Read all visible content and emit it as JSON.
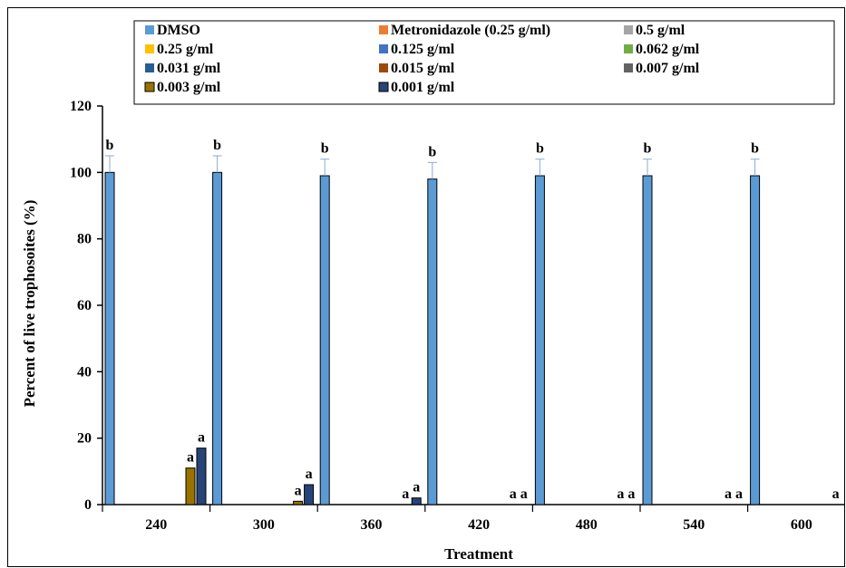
{
  "chart_data": {
    "type": "bar",
    "xlabel": "Treatment",
    "ylabel": "Percent of live trophosoites (%)",
    "ylim": [
      0,
      120
    ],
    "yticks": [
      0,
      20,
      40,
      60,
      80,
      100,
      120
    ],
    "grid": false,
    "legend_position": "top",
    "categories": [
      "240",
      "300",
      "360",
      "420",
      "480",
      "540",
      "600"
    ],
    "series": [
      {
        "name": "DMSO",
        "color": "#5b9bd5",
        "values": [
          100,
          100,
          99,
          98,
          99,
          99,
          99
        ],
        "errors": [
          5,
          5,
          5,
          5,
          5,
          5,
          5
        ],
        "labels": [
          "b",
          "b",
          "b",
          "b",
          "b",
          "b",
          "b"
        ]
      },
      {
        "name": "Metronidazole (0.25 g/ml)",
        "color": "#ed7d31",
        "values": [
          0,
          0,
          0,
          0,
          0,
          0,
          0
        ],
        "errors": [
          0,
          0,
          0,
          0,
          0,
          0,
          0
        ],
        "labels": [
          "",
          "",
          "",
          "",
          "",
          "",
          ""
        ]
      },
      {
        "name": "0.5 g/ml",
        "color": "#a5a5a5",
        "values": [
          0,
          0,
          0,
          0,
          0,
          0,
          0
        ],
        "errors": [
          0,
          0,
          0,
          0,
          0,
          0,
          0
        ],
        "labels": [
          "",
          "",
          "",
          "",
          "",
          "",
          ""
        ]
      },
      {
        "name": "0.25 g/ml",
        "color": "#ffc000",
        "values": [
          0,
          0,
          0,
          0,
          0,
          0,
          0
        ],
        "errors": [
          0,
          0,
          0,
          0,
          0,
          0,
          0
        ],
        "labels": [
          "",
          "",
          "",
          "",
          "",
          "",
          ""
        ]
      },
      {
        "name": "0.125 g/ml",
        "color": "#4472c4",
        "values": [
          0,
          0,
          0,
          0,
          0,
          0,
          0
        ],
        "errors": [
          0,
          0,
          0,
          0,
          0,
          0,
          0
        ],
        "labels": [
          "",
          "",
          "",
          "",
          "",
          "",
          ""
        ]
      },
      {
        "name": "0.062 g/ml",
        "color": "#70ad47",
        "values": [
          0,
          0,
          0,
          0,
          0,
          0,
          0
        ],
        "errors": [
          0,
          0,
          0,
          0,
          0,
          0,
          0
        ],
        "labels": [
          "",
          "",
          "",
          "",
          "",
          "",
          ""
        ]
      },
      {
        "name": "0.031 g/ml",
        "color": "#255e91",
        "values": [
          0,
          0,
          0,
          0,
          0,
          0,
          0
        ],
        "errors": [
          0,
          0,
          0,
          0,
          0,
          0,
          0
        ],
        "labels": [
          "",
          "",
          "",
          "",
          "",
          "",
          ""
        ]
      },
      {
        "name": "0.015 g/ml",
        "color": "#9e480e",
        "values": [
          0,
          0,
          0,
          0,
          0,
          0,
          0
        ],
        "errors": [
          0,
          0,
          0,
          0,
          0,
          0,
          0
        ],
        "labels": [
          "",
          "",
          "",
          "",
          "",
          "",
          ""
        ]
      },
      {
        "name": "0.007 g/ml",
        "color": "#636363",
        "values": [
          0,
          0,
          0,
          0,
          0,
          0,
          0
        ],
        "errors": [
          0,
          0,
          0,
          0,
          0,
          0,
          0
        ],
        "labels": [
          "",
          "",
          "",
          "",
          "",
          "",
          ""
        ]
      },
      {
        "name": "0.003 g/ml",
        "color": "#997300",
        "values": [
          11,
          1,
          0,
          0,
          0,
          0,
          0
        ],
        "errors": [
          0,
          0,
          0,
          0,
          0,
          0,
          0
        ],
        "labels": [
          "a",
          "a",
          "a",
          "a",
          "a",
          "a",
          "a"
        ]
      },
      {
        "name": "0.001 g/ml",
        "color": "#264478",
        "values": [
          17,
          6,
          2,
          0,
          0,
          0,
          0
        ],
        "errors": [
          0,
          0,
          0,
          0,
          0,
          0,
          0
        ],
        "labels": [
          "a",
          "a",
          "a",
          "a",
          "a",
          "a",
          "a"
        ]
      }
    ]
  }
}
